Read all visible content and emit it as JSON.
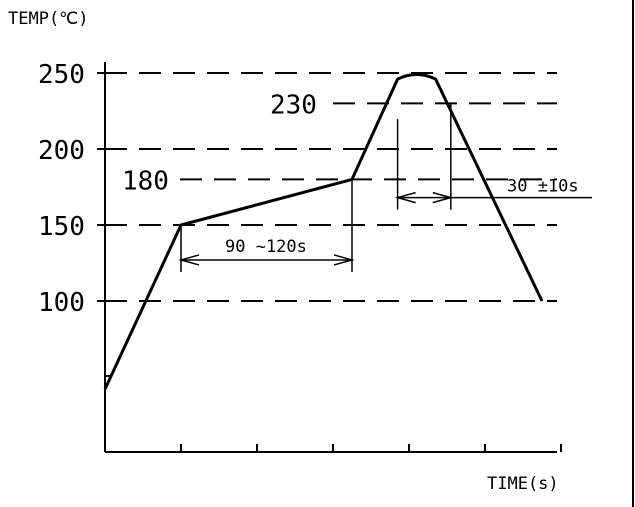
{
  "chart_data": {
    "type": "line",
    "xlabel": "TIME(s)",
    "ylabel": "TEMP(℃)",
    "y_ticks": [
      {
        "value": 250,
        "label": "250"
      },
      {
        "value": 200,
        "label": "200"
      },
      {
        "value": 150,
        "label": "150"
      },
      {
        "value": 100,
        "label": "100"
      }
    ],
    "ref_lines": [
      {
        "value": 230,
        "label": "230"
      },
      {
        "value": 180,
        "label": "180"
      }
    ],
    "series": [
      {
        "points": [
          {
            "x": 0,
            "y": 42
          },
          {
            "x": 1,
            "y": 150
          },
          {
            "x": 3.25,
            "y": 180
          },
          {
            "x": 3.85,
            "y": 246
          },
          {
            "x": 4.1,
            "y": 250
          },
          {
            "x": 4.35,
            "y": 246
          },
          {
            "x": 5.75,
            "y": 100
          }
        ]
      }
    ],
    "annotations": [
      {
        "label": "90 ~120s",
        "x_from": 1,
        "x_to": 3.25,
        "y": 127
      },
      {
        "label": "30 ±10s",
        "x_from": 3.85,
        "x_to": 4.55,
        "y": 168
      }
    ],
    "xlim": [
      0,
      6
    ],
    "ylim": [
      0,
      260
    ],
    "grid": false
  }
}
